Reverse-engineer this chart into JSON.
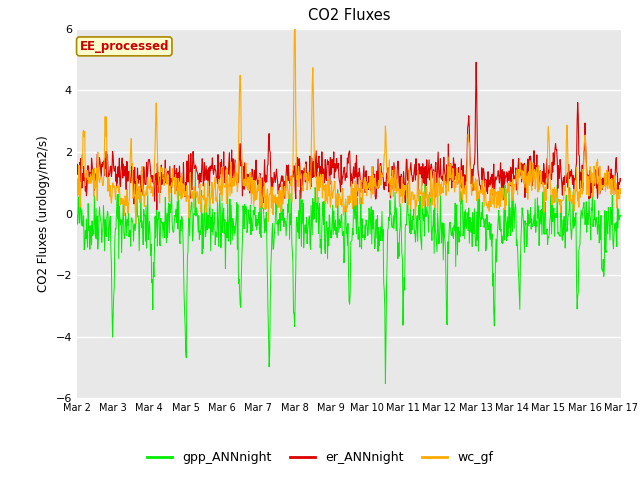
{
  "title": "CO2 Fluxes",
  "ylabel": "CO2 Fluxes (urology/m2/s)",
  "xlabel": "",
  "ylim": [
    -6,
    6
  ],
  "yticks": [
    -6,
    -4,
    -2,
    0,
    2,
    4,
    6
  ],
  "xtick_labels": [
    "Mar 2",
    "Mar 3",
    "Mar 4",
    "Mar 5",
    "Mar 6",
    "Mar 7",
    "Mar 8",
    "Mar 9",
    "Mar 10",
    "Mar 11",
    "Mar 12",
    "Mar 13",
    "Mar 14",
    "Mar 15",
    "Mar 16",
    "Mar 17"
  ],
  "line_colors": {
    "gpp_ANNnight": "#00ee00",
    "er_ANNnight": "#dd0000",
    "wc_gf": "#ffaa00"
  },
  "legend_label": "EE_processed",
  "legend_box_facecolor": "#ffffcc",
  "legend_box_edgecolor": "#aa8800",
  "legend_text_color": "#cc0000",
  "bg_color": "#e8e8e8",
  "fig_bg_color": "#ffffff",
  "n_points": 960,
  "seed": 42
}
